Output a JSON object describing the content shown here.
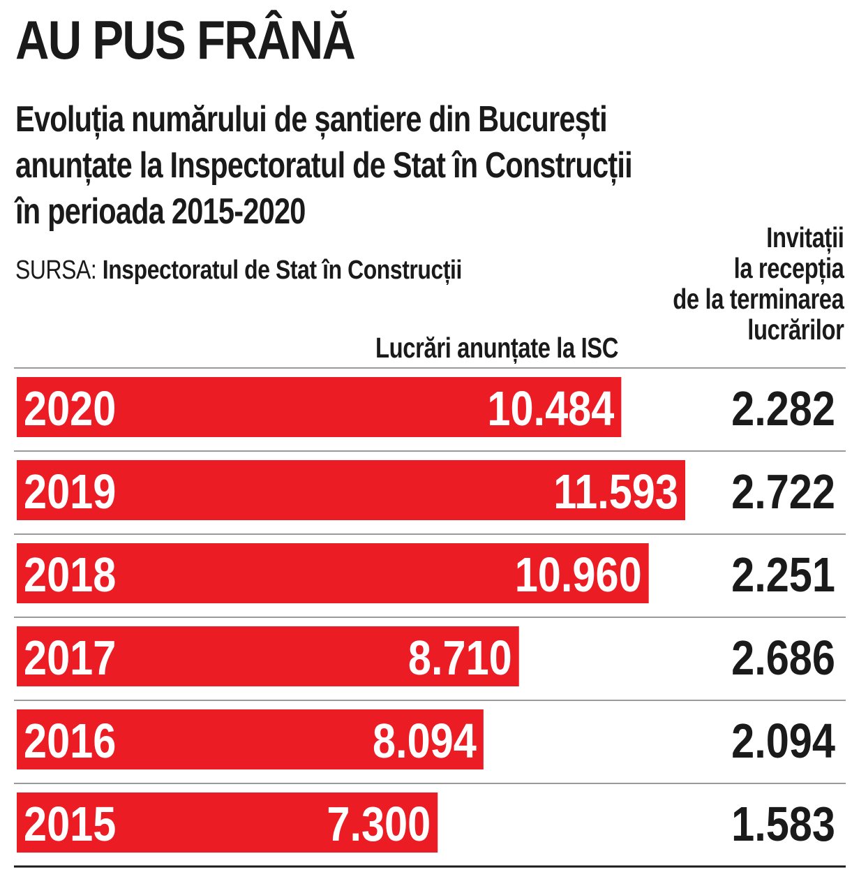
{
  "title": "AU PUS FRÂNĂ",
  "subtitle_lines": [
    "Evoluția numărului de șantiere din București",
    "anunțate la Inspectoratul de Stat în Construcții",
    "în perioada 2015-2020"
  ],
  "source_label": "SURSA:",
  "source_name": "Inspectoratul de Stat în Construcții",
  "columns": {
    "left_header": "Lucrări anunțate la ISC",
    "right_header_lines": [
      "Invitații",
      "la recepția",
      "de la terminarea",
      "lucrărilor"
    ]
  },
  "colors": {
    "bar": "#ec1c24",
    "text": "#1a1a1a",
    "rule": "#9a9a9a",
    "bottom_rule": "#1a1a1a"
  },
  "chart_data": {
    "type": "bar",
    "orientation": "horizontal",
    "categories": [
      "2020",
      "2019",
      "2018",
      "2017",
      "2016",
      "2015"
    ],
    "series": [
      {
        "name": "Lucrări anunțate la ISC",
        "values": [
          10484,
          11593,
          10960,
          8710,
          8094,
          7300
        ],
        "labels": [
          "10.484",
          "11.593",
          "10.960",
          "8.710",
          "8.094",
          "7.300"
        ]
      },
      {
        "name": "Invitații la recepția de la terminarea lucrărilor",
        "values": [
          2282,
          2722,
          2251,
          2686,
          2094,
          1583
        ],
        "labels": [
          "2.282",
          "2.722",
          "2.251",
          "2.686",
          "2.094",
          "1.583"
        ]
      }
    ],
    "xlim": [
      0,
      11593
    ]
  }
}
